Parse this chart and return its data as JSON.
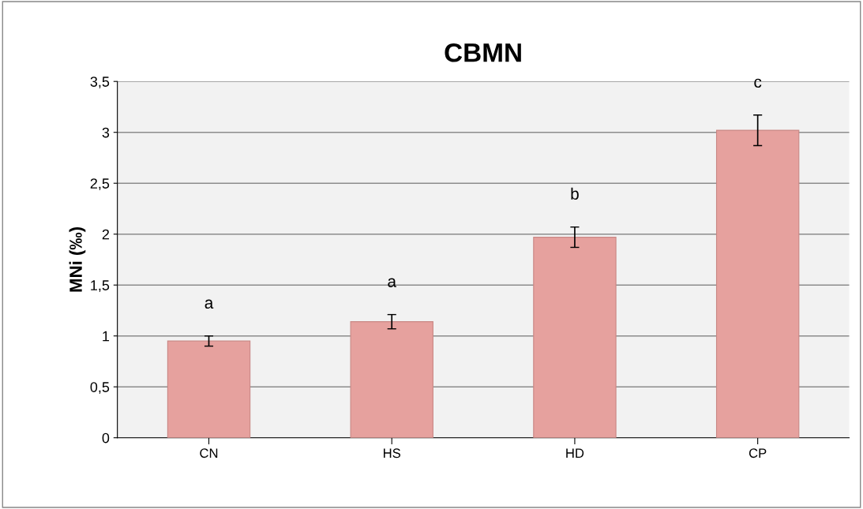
{
  "chart_data": {
    "type": "bar",
    "title": "CBMN",
    "ylabel": "MNi (‰)",
    "categories": [
      "CN",
      "HS",
      "HD",
      "CP"
    ],
    "values": [
      0.95,
      1.14,
      1.97,
      3.02
    ],
    "errors": [
      0.05,
      0.07,
      0.1,
      0.15
    ],
    "color": "#e6a19e",
    "ylim": [
      0,
      3.5
    ],
    "yticks": [
      0,
      {
        "value": 0.5,
        "label": "0,5"
      },
      1,
      {
        "value": 1.5,
        "label": "1,5"
      },
      2,
      {
        "value": 2.5,
        "label": "2,5"
      },
      3,
      {
        "value": 3.5,
        "label": "3,5"
      }
    ],
    "grid": "y",
    "annotations": [
      "a",
      "a",
      "b",
      "c"
    ]
  }
}
